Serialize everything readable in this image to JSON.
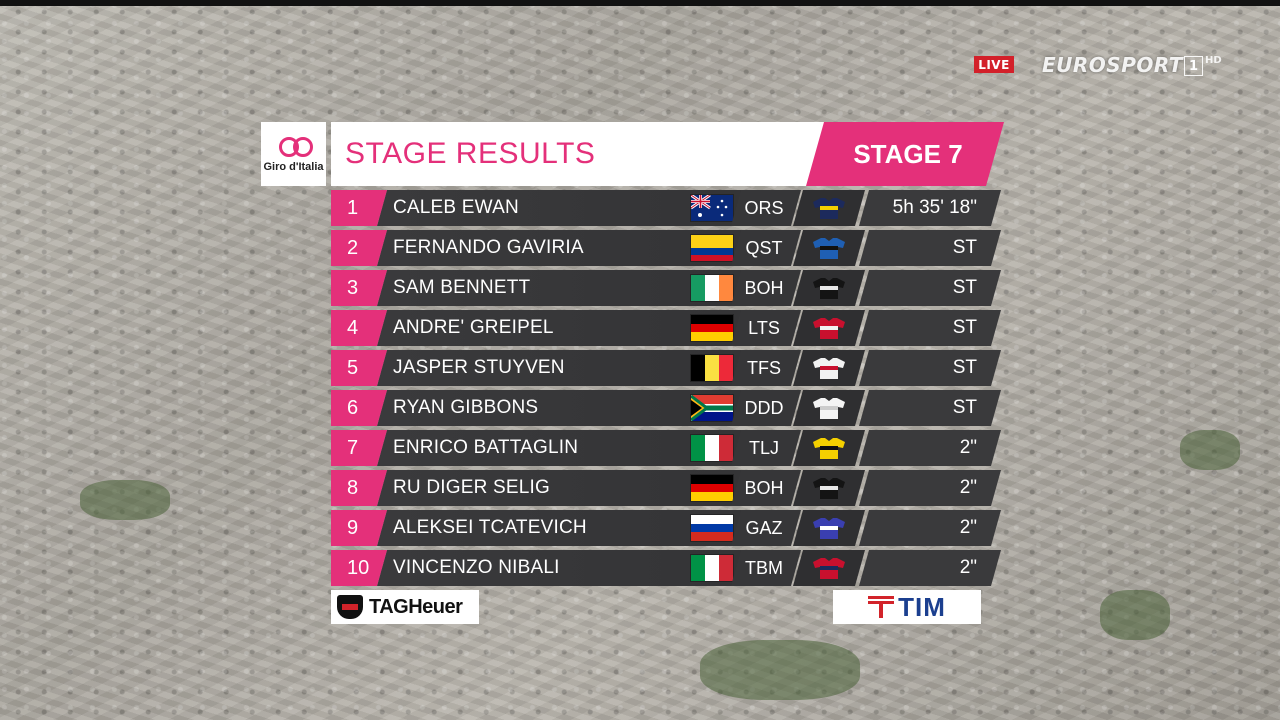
{
  "broadcast": {
    "live_label": "LIVE",
    "network": "EUROSPORT",
    "channel": "1",
    "quality": "HD"
  },
  "header": {
    "logo_text": "Giro d'Italia",
    "title": "STAGE RESULTS",
    "stage": "STAGE 7"
  },
  "colors": {
    "accent": "#e4307a",
    "row_bg": "#333335"
  },
  "results": [
    {
      "rank": "1",
      "rider": "CALEB EWAN",
      "team": "ORS",
      "time": "5h 35' 18\"",
      "flag": "australia",
      "jersey": "jersey-icon-navy-yellow"
    },
    {
      "rank": "2",
      "rider": "FERNANDO GAVIRIA",
      "team": "QST",
      "time": "ST",
      "flag": "colombia",
      "jersey": "jersey-icon-blue-black"
    },
    {
      "rank": "3",
      "rider": "SAM BENNETT",
      "team": "BOH",
      "time": "ST",
      "flag": "ireland",
      "jersey": "jersey-icon-black-white"
    },
    {
      "rank": "4",
      "rider": "ANDRE' GREIPEL",
      "team": "LTS",
      "time": "ST",
      "flag": "germany",
      "jersey": "jersey-icon-red-white"
    },
    {
      "rank": "5",
      "rider": "JASPER STUYVEN",
      "team": "TFS",
      "time": "ST",
      "flag": "belgium",
      "jersey": "jersey-icon-white-red"
    },
    {
      "rank": "6",
      "rider": "RYAN GIBBONS",
      "team": "DDD",
      "time": "ST",
      "flag": "south-africa",
      "jersey": "jersey-icon-white"
    },
    {
      "rank": "7",
      "rider": "ENRICO BATTAGLIN",
      "team": "TLJ",
      "time": "2\"",
      "flag": "italy",
      "jersey": "jersey-icon-yellow-black"
    },
    {
      "rank": "8",
      "rider": "RU  DIGER SELIG",
      "team": "BOH",
      "time": "2\"",
      "flag": "germany",
      "jersey": "jersey-icon-black-white"
    },
    {
      "rank": "9",
      "rider": "ALEKSEI TCATEVICH",
      "team": "GAZ",
      "time": "2\"",
      "flag": "russia",
      "jersey": "jersey-icon-blue-white"
    },
    {
      "rank": "10",
      "rider": "VINCENZO NIBALI",
      "team": "TBM",
      "time": "2\"",
      "flag": "italy",
      "jersey": "jersey-icon-red-navy"
    }
  ],
  "sponsors": {
    "left": "TAGHeuer",
    "right": "TIM"
  }
}
